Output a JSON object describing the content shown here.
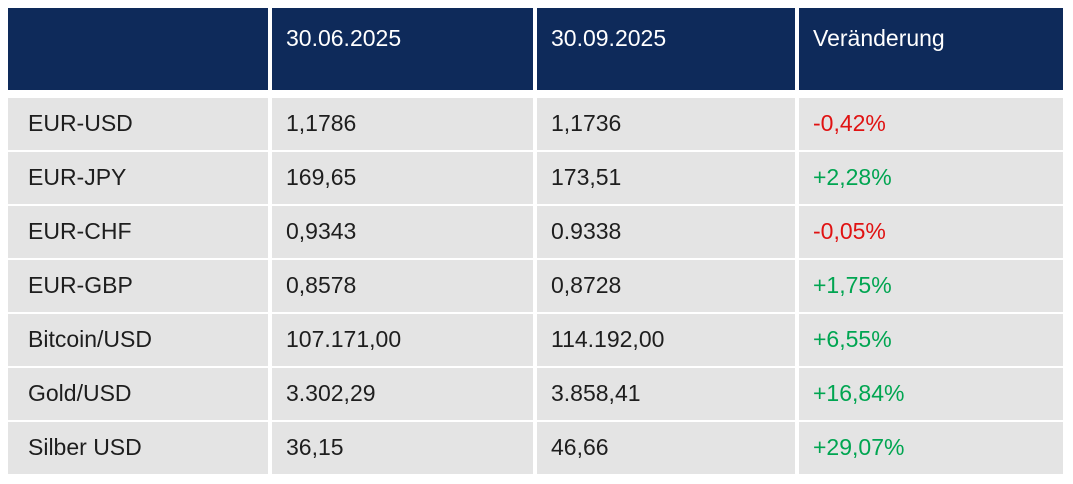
{
  "colors": {
    "page_bg": "#ffffff",
    "header_bg": "#0e2a5a",
    "header_text": "#ffffff",
    "row_bg": "#e4e4e4",
    "text": "#1e1e1e",
    "positive": "#00a551",
    "negative": "#e01212"
  },
  "chart_data": {
    "type": "table",
    "title": "",
    "columns": [
      "",
      "30.06.2025",
      "30.09.2025",
      "Veränderung"
    ],
    "rows": [
      {
        "label": "EUR-USD",
        "value_1": "1,1786",
        "value_2": "1,1736",
        "change": "-0,42%",
        "direction": "down"
      },
      {
        "label": "EUR-JPY",
        "value_1": "169,65",
        "value_2": "173,51",
        "change": "+2,28%",
        "direction": "up"
      },
      {
        "label": "EUR-CHF",
        "value_1": "0,9343",
        "value_2": "0.9338",
        "change": "-0,05%",
        "direction": "down"
      },
      {
        "label": "EUR-GBP",
        "value_1": "0,8578",
        "value_2": "0,8728",
        "change": "+1,75%",
        "direction": "up"
      },
      {
        "label": "Bitcoin/USD",
        "value_1": "107.171,00",
        "value_2": "114.192,00",
        "change": "+6,55%",
        "direction": "up"
      },
      {
        "label": "Gold/USD",
        "value_1": "3.302,29",
        "value_2": "3.858,41",
        "change": "+16,84%",
        "direction": "up"
      },
      {
        "label": "Silber USD",
        "value_1": "36,15",
        "value_2": "46,66",
        "change": "+29,07%",
        "direction": "up"
      }
    ]
  }
}
